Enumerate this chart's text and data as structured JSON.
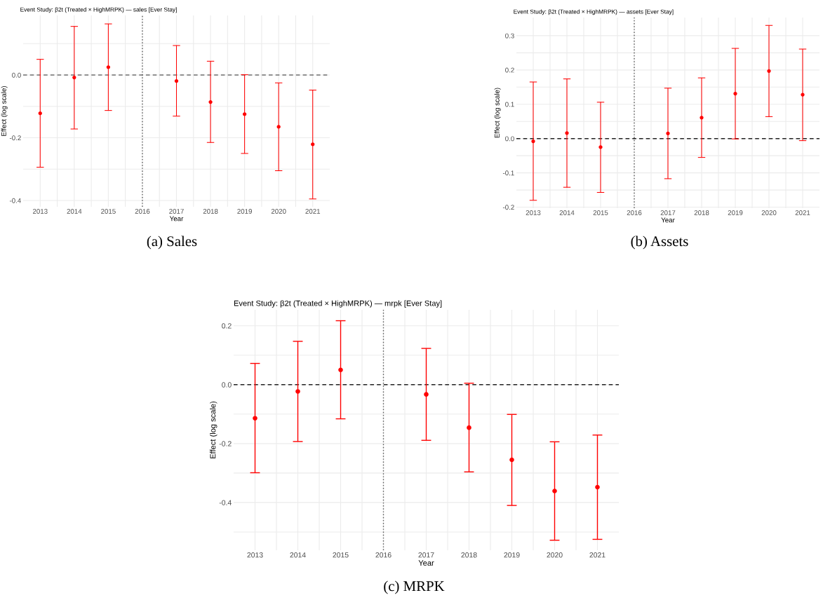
{
  "chart_data": [
    {
      "type": "scatter",
      "title": "Event Study: β2t (Treated × HighMRPK) — sales [Ever Stay]",
      "xlabel": "Year",
      "ylabel": "Effect (log scale)",
      "annotations": [
        "(a) Sales"
      ],
      "x": [
        2013,
        2014,
        2015,
        2017,
        2018,
        2019,
        2020,
        2021
      ],
      "series": [
        {
          "color": "#ff0000",
          "values": [
            -0.122,
            -0.008,
            0.025,
            -0.019,
            -0.086,
            -0.125,
            -0.165,
            -0.221
          ],
          "errors": [
            [
              -0.294,
              0.05
            ],
            [
              -0.172,
              0.155
            ],
            [
              -0.113,
              0.163
            ],
            [
              -0.131,
              0.094
            ],
            [
              -0.215,
              0.044
            ],
            [
              -0.25,
              0.001
            ],
            [
              -0.305,
              -0.025
            ],
            [
              -0.395,
              -0.048
            ]
          ]
        }
      ],
      "xlim": [
        2012.5,
        2021.5
      ],
      "xticks": [
        2013,
        {
          "value": 2013.5,
          "label": null
        },
        2014,
        {
          "value": 2014.5,
          "label": null
        },
        2015,
        {
          "value": 2015.5,
          "label": null
        },
        2016,
        {
          "value": 2016.5,
          "label": null
        },
        2017,
        {
          "value": 2017.5,
          "label": null
        },
        2018,
        {
          "value": 2018.5,
          "label": null
        },
        2019,
        {
          "value": 2019.5,
          "label": null
        },
        2020,
        {
          "value": 2020.5,
          "label": null
        },
        2021
      ],
      "ylim": [
        -0.42,
        0.19
      ],
      "yticks": [
        {
          "value": -0.4,
          "label": "-0.4"
        },
        {
          "value": -0.3,
          "label": null
        },
        {
          "value": -0.2,
          "label": "-0.2"
        },
        {
          "value": -0.1,
          "label": null
        },
        {
          "value": 0.0,
          "label": "0.0"
        },
        {
          "value": 0.1,
          "label": null
        }
      ],
      "ref_lines": [
        {
          "axis": "y",
          "value": 0,
          "color": "#707070",
          "line_style": "dashed"
        },
        {
          "axis": "x",
          "value": 2016,
          "color": "#555555",
          "line_style": "dotted"
        }
      ],
      "grid": true,
      "marker": "circle"
    },
    {
      "type": "scatter",
      "title": "Event Study: β2t (Treated × HighMRPK) — assets [Ever Stay]",
      "xlabel": "Year",
      "ylabel": "Effect (log scale)",
      "annotations": [
        "(b) Assets"
      ],
      "x": [
        2013,
        2014,
        2015,
        2017,
        2018,
        2019,
        2020,
        2021
      ],
      "series": [
        {
          "color": "#ff0000",
          "values": [
            -0.008,
            0.016,
            -0.025,
            0.015,
            0.061,
            0.131,
            0.197,
            0.128
          ],
          "errors": [
            [
              -0.18,
              0.165
            ],
            [
              -0.142,
              0.174
            ],
            [
              -0.157,
              0.106
            ],
            [
              -0.117,
              0.147
            ],
            [
              -0.055,
              0.177
            ],
            [
              -0.001,
              0.263
            ],
            [
              0.064,
              0.33
            ],
            [
              -0.006,
              0.261
            ]
          ]
        }
      ],
      "xlim": [
        2012.5,
        2021.5
      ],
      "xticks": [
        2013,
        {
          "value": 2013.5,
          "label": null
        },
        2014,
        {
          "value": 2014.5,
          "label": null
        },
        2015,
        {
          "value": 2015.5,
          "label": null
        },
        2016,
        {
          "value": 2016.5,
          "label": null
        },
        2017,
        {
          "value": 2017.5,
          "label": null
        },
        2018,
        {
          "value": 2018.5,
          "label": null
        },
        2019,
        {
          "value": 2019.5,
          "label": null
        },
        2020,
        {
          "value": 2020.5,
          "label": null
        },
        2021
      ],
      "ylim": [
        -0.203,
        0.353
      ],
      "yticks": [
        {
          "value": -0.2,
          "label": "-0.2"
        },
        {
          "value": -0.15,
          "label": null
        },
        {
          "value": -0.1,
          "label": "-0.1"
        },
        {
          "value": -0.05,
          "label": null
        },
        {
          "value": 0.0,
          "label": "0.0"
        },
        {
          "value": 0.05,
          "label": null
        },
        {
          "value": 0.1,
          "label": "0.1"
        },
        {
          "value": 0.15,
          "label": null
        },
        {
          "value": 0.2,
          "label": "0.2"
        },
        {
          "value": 0.25,
          "label": null
        },
        {
          "value": 0.3,
          "label": "0.3"
        }
      ],
      "ref_lines": [
        {
          "axis": "y",
          "value": 0,
          "color": "#222222",
          "line_style": "dashed"
        },
        {
          "axis": "x",
          "value": 2016,
          "color": "#555555",
          "line_style": "dotted"
        }
      ],
      "grid": true,
      "marker": "circle"
    },
    {
      "type": "scatter",
      "title": "Event Study: β2t (Treated × HighMRPK) — mrpk [Ever Stay]",
      "xlabel": "Year",
      "ylabel": "Effect (log scale)",
      "annotations": [
        "(c) MRPK"
      ],
      "x": [
        2013,
        2014,
        2015,
        2017,
        2018,
        2019,
        2020,
        2021
      ],
      "series": [
        {
          "color": "#ff0000",
          "values": [
            -0.114,
            -0.023,
            0.05,
            -0.033,
            -0.146,
            -0.255,
            -0.361,
            -0.348
          ],
          "errors": [
            [
              -0.299,
              0.072
            ],
            [
              -0.193,
              0.147
            ],
            [
              -0.116,
              0.217
            ],
            [
              -0.189,
              0.123
            ],
            [
              -0.296,
              0.005
            ],
            [
              -0.41,
              -0.101
            ],
            [
              -0.528,
              -0.194
            ],
            [
              -0.525,
              -0.171
            ]
          ]
        }
      ],
      "xlim": [
        2012.5,
        2021.5
      ],
      "xticks": [
        2013,
        {
          "value": 2013.5,
          "label": null
        },
        2014,
        {
          "value": 2014.5,
          "label": null
        },
        2015,
        {
          "value": 2015.5,
          "label": null
        },
        2016,
        {
          "value": 2016.5,
          "label": null
        },
        2017,
        {
          "value": 2017.5,
          "label": null
        },
        2018,
        {
          "value": 2018.5,
          "label": null
        },
        2019,
        {
          "value": 2019.5,
          "label": null
        },
        2020,
        {
          "value": 2020.5,
          "label": null
        },
        2021
      ],
      "ylim": [
        -0.562,
        0.254
      ],
      "yticks": [
        {
          "value": -0.5,
          "label": null
        },
        {
          "value": -0.4,
          "label": "-0.4"
        },
        {
          "value": -0.3,
          "label": null
        },
        {
          "value": -0.2,
          "label": "-0.2"
        },
        {
          "value": -0.1,
          "label": null
        },
        {
          "value": 0.0,
          "label": "0.0"
        },
        {
          "value": 0.1,
          "label": null
        },
        {
          "value": 0.2,
          "label": "0.2"
        }
      ],
      "ref_lines": [
        {
          "axis": "y",
          "value": 0,
          "color": "#222222",
          "line_style": "dashed"
        },
        {
          "axis": "x",
          "value": 2016,
          "color": "#555555",
          "line_style": "dotted"
        }
      ],
      "grid": true,
      "marker": "circle"
    }
  ]
}
